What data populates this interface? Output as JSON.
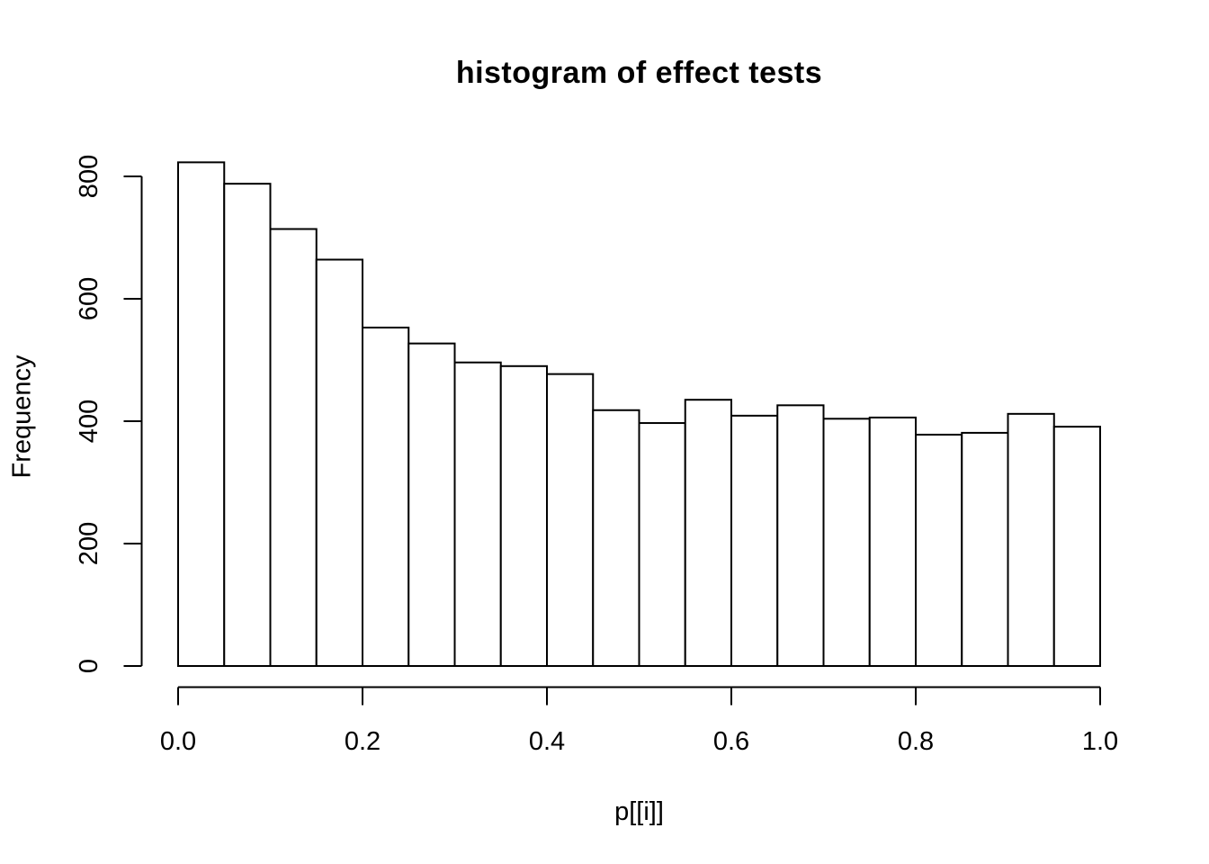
{
  "chart_data": {
    "type": "bar",
    "subtype": "histogram",
    "title": "histogram of effect tests",
    "xlabel": "p[[i]]",
    "ylabel": "Frequency",
    "xlim": [
      0,
      1
    ],
    "ylim": [
      0,
      800
    ],
    "bin_width": 0.05,
    "breaks": [
      0,
      0.05,
      0.1,
      0.15,
      0.2,
      0.25,
      0.3,
      0.35,
      0.4,
      0.45,
      0.5,
      0.55,
      0.6,
      0.65,
      0.7,
      0.75,
      0.8,
      0.85,
      0.9,
      0.95,
      1.0
    ],
    "values": [
      823,
      788,
      714,
      664,
      553,
      527,
      496,
      490,
      477,
      418,
      397,
      435,
      409,
      426,
      404,
      406,
      378,
      381,
      412,
      391
    ],
    "x_ticks": {
      "values": [
        0,
        0.2,
        0.4,
        0.6,
        0.8,
        1.0
      ],
      "labels": [
        "0.0",
        "0.2",
        "0.4",
        "0.6",
        "0.8",
        "1.0"
      ]
    },
    "y_ticks": {
      "values": [
        0,
        200,
        400,
        600,
        800
      ],
      "labels": [
        "0",
        "200",
        "400",
        "600",
        "800"
      ]
    },
    "grid": false,
    "legend": false,
    "bar_fill": "#ffffff",
    "line_color": "#000000",
    "background": "#ffffff"
  }
}
